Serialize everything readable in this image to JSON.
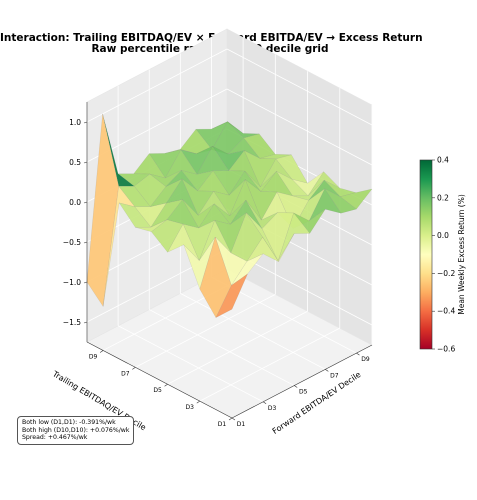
{
  "chart_data": {
    "type": "surface3d",
    "title": "Interaction: Trailing EBITDAQ/EV × Forward EBITDA/EV → Excess Return",
    "subtitle": "Raw percentile ranks, 10×10 decile grid",
    "xlabel": "Forward EBITDA/EV Decile",
    "ylabel": "Trailing EBITDAQ/EV Decile",
    "zlabel": "",
    "x_tick_labels": [
      "D1",
      "D3",
      "D5",
      "D7",
      "D9"
    ],
    "y_tick_labels": [
      "D1",
      "D3",
      "D5",
      "D7",
      "D9"
    ],
    "z_ticks": [
      -1.5,
      -1.0,
      -0.5,
      0.0,
      0.5,
      1.0
    ],
    "z_tick_labels": [
      "−1.5",
      "−1.0",
      "−0.5",
      "0.0",
      "0.5",
      "1.0"
    ],
    "zlim": [
      -1.75,
      1.25
    ],
    "colorbar": {
      "label": "Mean Weekly Excess Return (%)",
      "min": -0.6,
      "max": 0.4,
      "ticks": [
        -0.6,
        -0.4,
        -0.2,
        0.0,
        0.2,
        0.4
      ],
      "tick_labels": [
        "−0.6",
        "−0.4",
        "−0.2",
        "0.0",
        "0.2",
        "0.4"
      ],
      "colormap": "RdYlGn"
    },
    "grid": true,
    "x_deciles": [
      "D1",
      "D2",
      "D3",
      "D4",
      "D5",
      "D6",
      "D7",
      "D8",
      "D9",
      "D10"
    ],
    "y_deciles": [
      "D1",
      "D2",
      "D3",
      "D4",
      "D5",
      "D6",
      "D7",
      "D8",
      "D9",
      "D10"
    ],
    "z": [
      [
        -0.39,
        -0.05,
        0.1,
        -0.1,
        0.15,
        0.05,
        0.25,
        0.1,
        0.05,
        0.2
      ],
      [
        -0.6,
        -0.3,
        -0.1,
        0.1,
        -0.3,
        0.2,
        0.0,
        0.3,
        0.1,
        0.05
      ],
      [
        -0.35,
        0.2,
        -0.1,
        0.3,
        0.0,
        0.1,
        -0.2,
        0.05,
        0.2,
        0.0
      ],
      [
        0.1,
        -0.2,
        0.2,
        0.05,
        0.25,
        -0.1,
        0.15,
        0.0,
        -0.1,
        0.1
      ],
      [
        -0.1,
        0.15,
        0.0,
        0.2,
        -0.05,
        0.3,
        0.05,
        0.2,
        0.0,
        -0.15
      ],
      [
        0.05,
        0.1,
        0.25,
        -0.05,
        0.15,
        0.0,
        0.2,
        -0.1,
        0.15,
        0.1
      ],
      [
        0.0,
        -0.1,
        0.1,
        0.3,
        0.05,
        0.2,
        0.1,
        0.25,
        0.05,
        0.0
      ],
      [
        0.2,
        0.05,
        -0.05,
        0.1,
        0.2,
        0.05,
        0.3,
        0.1,
        0.2,
        0.15
      ],
      [
        -1.2,
        0.2,
        0.1,
        0.15,
        0.0,
        0.25,
        0.1,
        0.05,
        0.3,
        0.05
      ],
      [
        -1.0,
        1.0,
        0.15,
        0.05,
        0.2,
        0.1,
        0.05,
        0.2,
        0.1,
        0.08
      ]
    ]
  },
  "annotation": {
    "line1": "Both low (D1,D1): -0.391%/wk",
    "line2": "Both high (D10,D10): +0.076%/wk",
    "line3": "Spread: +0.467%/wk"
  }
}
